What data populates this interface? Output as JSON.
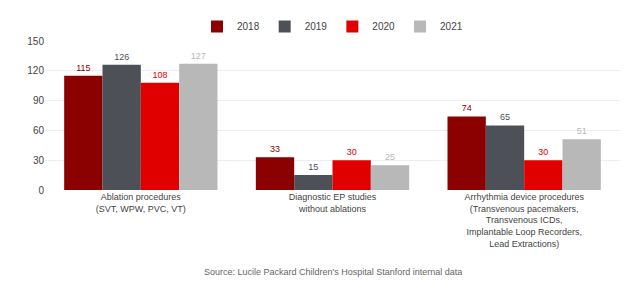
{
  "chart_data": {
    "type": "bar",
    "categories": [
      "Ablation procedures\n(SVT, WPW, PVC, VT)",
      "Diagnostic EP studies\nwithout ablations",
      "Arrhythmia device procedures\n(Transvenous pacemakers,\nTransvenous ICDs,\nImplantable Loop Recorders,\nLead Extractions)"
    ],
    "series": [
      {
        "name": "2018",
        "color": "#8B0000",
        "values": [
          115,
          33,
          74
        ]
      },
      {
        "name": "2019",
        "color": "#4d5157",
        "values": [
          126,
          15,
          65
        ]
      },
      {
        "name": "2020",
        "color": "#e00000",
        "values": [
          108,
          30,
          30
        ]
      },
      {
        "name": "2021",
        "color": "#b8b8b8",
        "values": [
          127,
          25,
          51
        ]
      }
    ],
    "ylim": [
      0,
      150
    ],
    "yticks": [
      0,
      30,
      60,
      90,
      120,
      150
    ],
    "grid": true,
    "legend": "top",
    "data_labels": true,
    "annotations": [
      "Source: Lucile Packard Children's Hospital Stanford internal data"
    ]
  }
}
